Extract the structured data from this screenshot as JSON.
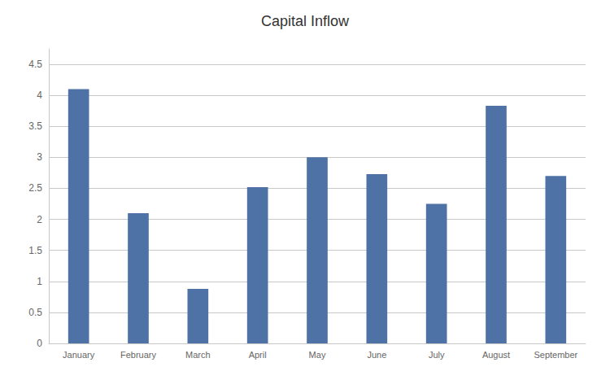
{
  "chart_data": {
    "type": "bar",
    "title": "Capital Inflow",
    "categories": [
      "January",
      "February",
      "March",
      "April",
      "May",
      "June",
      "July",
      "August",
      "September"
    ],
    "values": [
      4.1,
      2.1,
      0.88,
      2.52,
      3.0,
      2.73,
      2.25,
      3.83,
      2.7
    ],
    "color": "#4F72A6",
    "ylim": [
      0,
      4.75
    ],
    "yticks": [
      0,
      0.5,
      1.0,
      1.5,
      2.0,
      2.5,
      3.0,
      3.5,
      4.0,
      4.5
    ],
    "grid": true
  }
}
